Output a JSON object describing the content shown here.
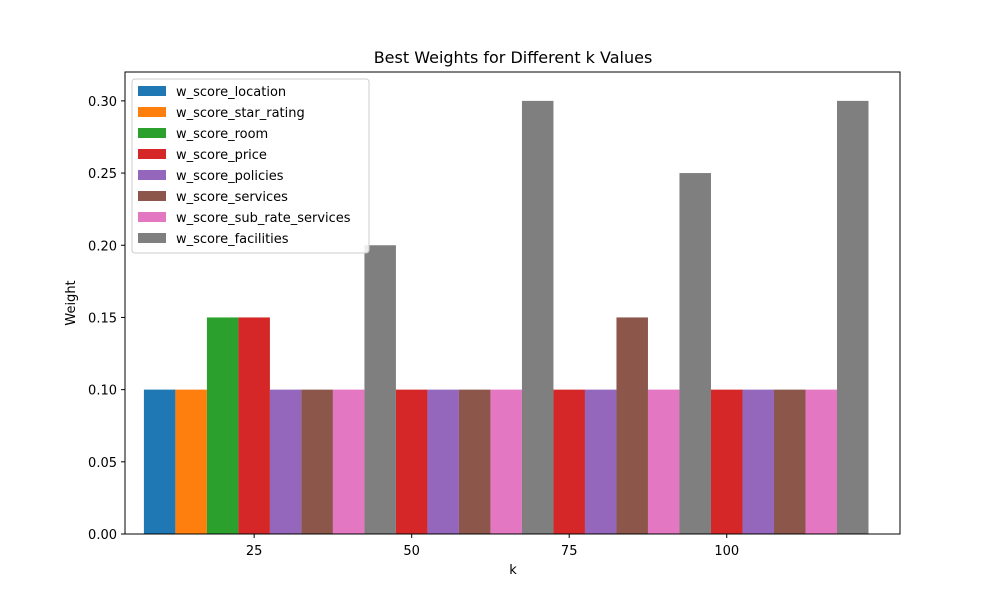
{
  "chart_data": {
    "type": "bar",
    "title": "Best Weights for Different k Values",
    "xlabel": "k",
    "ylabel": "Weight",
    "x_ticks": [
      25,
      50,
      75,
      100
    ],
    "y_ticks": [
      "0.00",
      "0.05",
      "0.10",
      "0.15",
      "0.20",
      "0.25",
      "0.30"
    ],
    "ylim": [
      0,
      0.32
    ],
    "xlim": [
      4.5,
      127.5
    ],
    "grid": false,
    "legend_position": "top-left",
    "bar_width": 5,
    "series": [
      {
        "name": "w_score_location",
        "color": "#1f77b4",
        "x": [
          10
        ],
        "values": [
          0.1
        ]
      },
      {
        "name": "w_score_star_rating",
        "color": "#ff7f0e",
        "x": [
          15
        ],
        "values": [
          0.1
        ]
      },
      {
        "name": "w_score_room",
        "color": "#2ca02c",
        "x": [
          20
        ],
        "values": [
          0.15
        ]
      },
      {
        "name": "w_score_price",
        "color": "#d62728",
        "x": [
          25,
          50,
          75,
          100
        ],
        "values": [
          0.15,
          0.1,
          0.1,
          0.1
        ]
      },
      {
        "name": "w_score_policies",
        "color": "#9467bd",
        "x": [
          30,
          55,
          80,
          105
        ],
        "values": [
          0.1,
          0.1,
          0.1,
          0.1
        ]
      },
      {
        "name": "w_score_services",
        "color": "#8c564b",
        "x": [
          35,
          60,
          85,
          110
        ],
        "values": [
          0.1,
          0.1,
          0.15,
          0.1
        ]
      },
      {
        "name": "w_score_sub_rate_services",
        "color": "#e377c2",
        "x": [
          40,
          65,
          90,
          115
        ],
        "values": [
          0.1,
          0.1,
          0.1,
          0.1
        ]
      },
      {
        "name": "w_score_facilities",
        "color": "#7f7f7f",
        "x": [
          45,
          70,
          95,
          120
        ],
        "values": [
          0.2,
          0.3,
          0.25,
          0.3
        ]
      }
    ]
  }
}
